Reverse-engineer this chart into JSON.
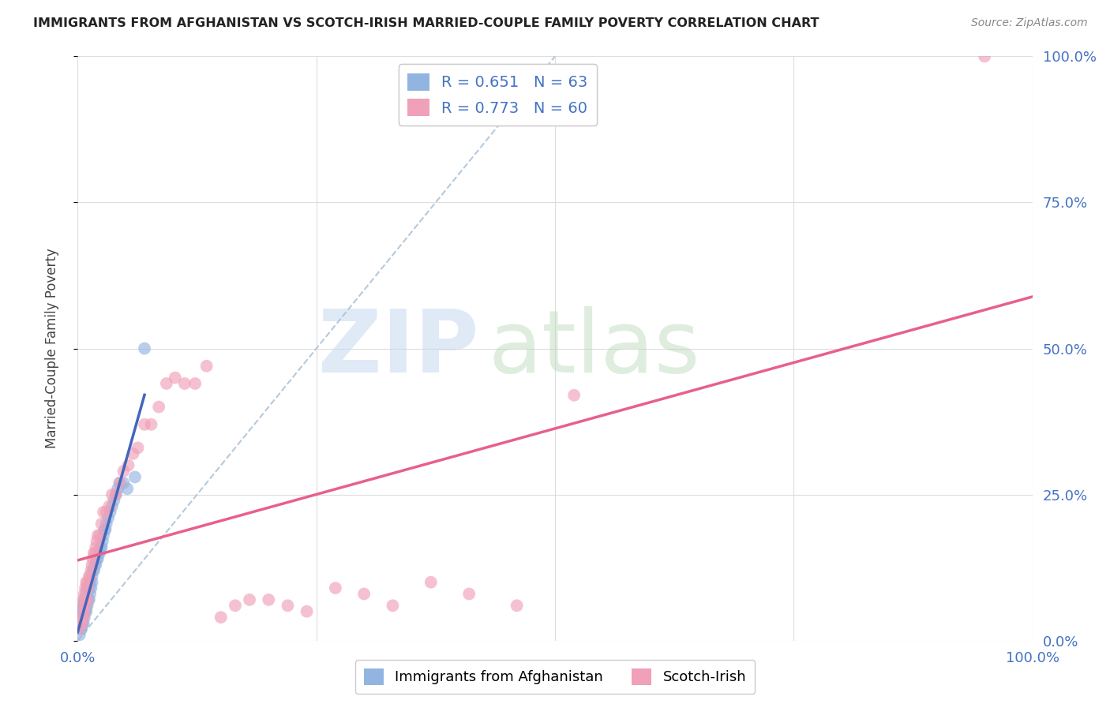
{
  "title": "IMMIGRANTS FROM AFGHANISTAN VS SCOTCH-IRISH MARRIED-COUPLE FAMILY POVERTY CORRELATION CHART",
  "source": "Source: ZipAtlas.com",
  "ylabel": "Married-Couple Family Poverty",
  "xlim": [
    0,
    1
  ],
  "ylim": [
    0,
    1
  ],
  "ytick_positions": [
    0.0,
    0.25,
    0.5,
    0.75,
    1.0
  ],
  "ytick_labels": [
    "0.0%",
    "25.0%",
    "50.0%",
    "75.0%",
    "100.0%"
  ],
  "xtick_positions": [
    0.0,
    0.25,
    0.5,
    0.75,
    1.0
  ],
  "xtick_labels": [
    "0.0%",
    "",
    "",
    "",
    "100.0%"
  ],
  "blue_R": 0.651,
  "blue_N": 63,
  "pink_R": 0.773,
  "pink_N": 60,
  "blue_color": "#92b4e0",
  "pink_color": "#f0a0b8",
  "blue_line_color": "#4466bb",
  "pink_line_color": "#e8608a",
  "dash_line_color": "#adc4d8",
  "legend_label_blue": "Immigrants from Afghanistan",
  "legend_label_pink": "Scotch-Irish",
  "background_color": "#ffffff",
  "grid_color": "#dddddd",
  "tick_color": "#4472c4",
  "title_color": "#222222",
  "source_color": "#888888",
  "ylabel_color": "#444444",
  "watermark_zip_color": "#c8d8f0",
  "watermark_atlas_color": "#b8d8b8",
  "blue_scatter_x": [
    0.002,
    0.002,
    0.003,
    0.003,
    0.003,
    0.004,
    0.004,
    0.004,
    0.004,
    0.005,
    0.005,
    0.005,
    0.005,
    0.006,
    0.006,
    0.006,
    0.007,
    0.007,
    0.007,
    0.007,
    0.008,
    0.008,
    0.009,
    0.009,
    0.009,
    0.01,
    0.01,
    0.01,
    0.011,
    0.011,
    0.012,
    0.012,
    0.013,
    0.013,
    0.014,
    0.015,
    0.015,
    0.016,
    0.017,
    0.018,
    0.019,
    0.02,
    0.021,
    0.022,
    0.023,
    0.024,
    0.025,
    0.026,
    0.027,
    0.028,
    0.029,
    0.03,
    0.032,
    0.034,
    0.036,
    0.038,
    0.04,
    0.042,
    0.044,
    0.048,
    0.052,
    0.06,
    0.07
  ],
  "blue_scatter_y": [
    0.01,
    0.02,
    0.02,
    0.03,
    0.04,
    0.02,
    0.03,
    0.04,
    0.05,
    0.03,
    0.04,
    0.05,
    0.06,
    0.03,
    0.05,
    0.06,
    0.04,
    0.05,
    0.06,
    0.07,
    0.05,
    0.07,
    0.05,
    0.06,
    0.08,
    0.06,
    0.07,
    0.09,
    0.07,
    0.09,
    0.07,
    0.09,
    0.08,
    0.1,
    0.09,
    0.1,
    0.11,
    0.12,
    0.12,
    0.13,
    0.13,
    0.14,
    0.14,
    0.15,
    0.15,
    0.16,
    0.16,
    0.17,
    0.18,
    0.19,
    0.19,
    0.2,
    0.21,
    0.22,
    0.23,
    0.24,
    0.25,
    0.26,
    0.27,
    0.27,
    0.26,
    0.28,
    0.5
  ],
  "pink_scatter_x": [
    0.002,
    0.003,
    0.004,
    0.005,
    0.005,
    0.006,
    0.006,
    0.007,
    0.007,
    0.008,
    0.008,
    0.009,
    0.009,
    0.01,
    0.01,
    0.011,
    0.012,
    0.013,
    0.014,
    0.015,
    0.016,
    0.017,
    0.018,
    0.019,
    0.02,
    0.021,
    0.023,
    0.025,
    0.027,
    0.03,
    0.033,
    0.036,
    0.04,
    0.044,
    0.048,
    0.053,
    0.058,
    0.063,
    0.07,
    0.077,
    0.085,
    0.093,
    0.102,
    0.112,
    0.123,
    0.135,
    0.15,
    0.165,
    0.18,
    0.2,
    0.22,
    0.24,
    0.27,
    0.3,
    0.33,
    0.37,
    0.41,
    0.46,
    0.52,
    0.95
  ],
  "pink_scatter_y": [
    0.02,
    0.03,
    0.03,
    0.04,
    0.06,
    0.04,
    0.07,
    0.05,
    0.08,
    0.06,
    0.09,
    0.07,
    0.1,
    0.07,
    0.1,
    0.09,
    0.11,
    0.11,
    0.12,
    0.13,
    0.14,
    0.15,
    0.15,
    0.16,
    0.17,
    0.18,
    0.18,
    0.2,
    0.22,
    0.22,
    0.23,
    0.25,
    0.25,
    0.27,
    0.29,
    0.3,
    0.32,
    0.33,
    0.37,
    0.37,
    0.4,
    0.44,
    0.45,
    0.44,
    0.44,
    0.47,
    0.04,
    0.06,
    0.07,
    0.07,
    0.06,
    0.05,
    0.09,
    0.08,
    0.06,
    0.1,
    0.08,
    0.06,
    0.42,
    1.0
  ]
}
